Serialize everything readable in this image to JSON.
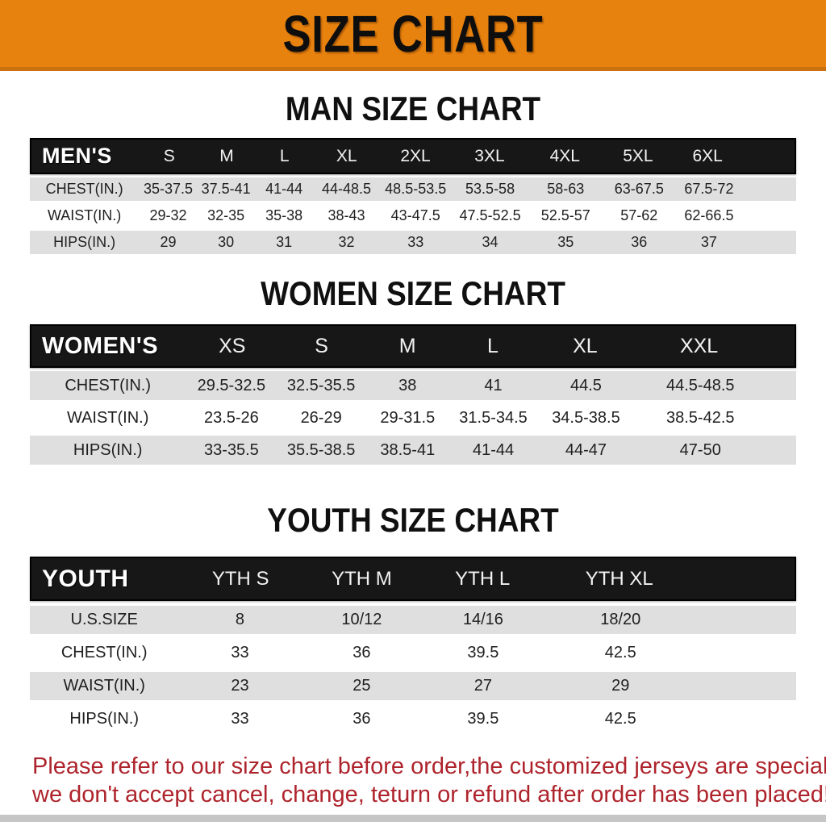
{
  "colors": {
    "banner_orange": "#e8820e",
    "banner_border": "#c9700f",
    "bar_black": "#171717",
    "stripe_gray": "#dfdfdf",
    "footer_red": "#ae242c",
    "bottom_strip": "#c6c6c6"
  },
  "banner": {
    "title": "SIZE CHART"
  },
  "sections": [
    {
      "title": "MAN SIZE CHART",
      "table": {
        "header": [
          "MEN'S",
          "S",
          "M",
          "L",
          "XL",
          "2XL",
          "3XL",
          "4XL",
          "5XL",
          "6XL"
        ],
        "rows": [
          [
            "CHEST(IN.)",
            "35-37.5",
            "37.5-41",
            "41-44",
            "44-48.5",
            "48.5-53.5",
            "53.5-58",
            "58-63",
            "63-67.5",
            "67.5-72"
          ],
          [
            "WAIST(IN.)",
            "29-32",
            "32-35",
            "35-38",
            "38-43",
            "43-47.5",
            "47.5-52.5",
            "52.5-57",
            "57-62",
            "62-66.5"
          ],
          [
            "HIPS(IN.)",
            "29",
            "30",
            "31",
            "32",
            "33",
            "34",
            "35",
            "36",
            "37"
          ]
        ]
      }
    },
    {
      "title": "WOMEN SIZE CHART",
      "table": {
        "header": [
          "WOMEN'S",
          "XS",
          "S",
          "M",
          "L",
          "XL",
          "XXL"
        ],
        "rows": [
          [
            "CHEST(IN.)",
            "29.5-32.5",
            "32.5-35.5",
            "38",
            "41",
            "44.5",
            "44.5-48.5"
          ],
          [
            "WAIST(IN.)",
            "23.5-26",
            "26-29",
            "29-31.5",
            "31.5-34.5",
            "34.5-38.5",
            "38.5-42.5"
          ],
          [
            "HIPS(IN.)",
            "33-35.5",
            "35.5-38.5",
            "38.5-41",
            "41-44",
            "44-47",
            "47-50"
          ]
        ]
      }
    },
    {
      "title": "YOUTH SIZE CHART",
      "table": {
        "header": [
          "YOUTH",
          "YTH S",
          "YTH M",
          "YTH L",
          "YTH XL"
        ],
        "rows": [
          [
            "U.S.SIZE",
            "8",
            "10/12",
            "14/16",
            "18/20"
          ],
          [
            "CHEST(IN.)",
            "33",
            "36",
            "39.5",
            "42.5"
          ],
          [
            "WAIST(IN.)",
            "23",
            "25",
            "27",
            "29"
          ],
          [
            "HIPS(IN.)",
            "33",
            "36",
            "39.5",
            "42.5"
          ]
        ]
      }
    }
  ],
  "footer": {
    "line1": "Please refer to our size chart before order,the customized jerseys are special products,",
    "line2": "we don't accept cancel, change, teturn or refund after order has been placed!"
  }
}
